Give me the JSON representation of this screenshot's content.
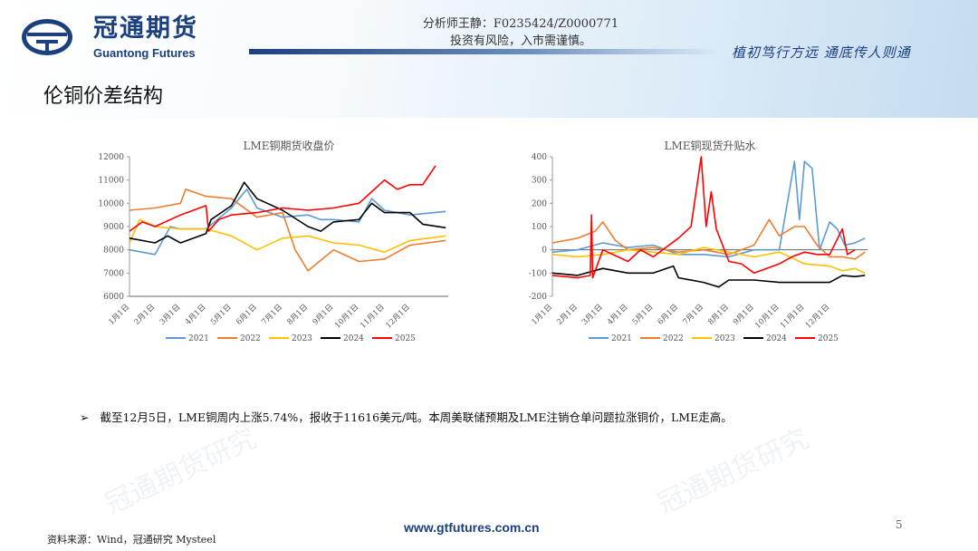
{
  "header": {
    "logo_cn": "冠通期货",
    "logo_en": "Guantong Futures",
    "analyst": "分析师王静：F0235424/Z0000771",
    "risk": "投资有风险，入市需谨慎。",
    "slogan": "植初笃行方远 通底传人则通"
  },
  "page_title": "伦铜价差结构",
  "bullet": "截至12月5日，LME铜周内上涨5.74%，报收于11616美元/吨。本周美联储预期及LME注销仓单问题拉涨铜价，LME走高。",
  "footer": {
    "source": "资料来源：Wind，冠通研究 Mysteel",
    "website": "www.gtfutures.com.cn",
    "page": "5"
  },
  "watermark": "冠通期货研究",
  "chart_data": [
    {
      "type": "line",
      "title": "LME铜期货收盘价",
      "ylim": [
        6000,
        12000
      ],
      "yticks": [
        6000,
        7000,
        8000,
        9000,
        10000,
        11000,
        12000
      ],
      "categories": [
        "1月1日",
        "2月1日",
        "3月1日",
        "4月1日",
        "5月1日",
        "6月1日",
        "7月1日",
        "8月1日",
        "9月1日",
        "10月1日",
        "11月1日",
        "12月1日"
      ],
      "series": [
        {
          "name": "2021",
          "color": "#5b9bd5",
          "x": [
            0,
            1,
            1.6,
            2,
            3,
            4,
            4.6,
            5,
            6,
            7,
            7.5,
            8,
            9,
            9.5,
            10,
            11,
            12.4
          ],
          "y": [
            8000,
            7800,
            9000,
            8900,
            8900,
            9800,
            10600,
            9800,
            9400,
            9500,
            9300,
            9300,
            9200,
            10200,
            9700,
            9500,
            9650
          ]
        },
        {
          "name": "2022",
          "color": "#ed7d31",
          "x": [
            0,
            1,
            2,
            2.2,
            3,
            4,
            5,
            6,
            6.5,
            7,
            8,
            9,
            10,
            11,
            12.4
          ],
          "y": [
            9700,
            9800,
            10000,
            10600,
            10300,
            10200,
            9400,
            9600,
            8000,
            7100,
            8000,
            7500,
            7600,
            8200,
            8400
          ]
        },
        {
          "name": "2023",
          "color": "#ffc000",
          "x": [
            0,
            0.4,
            1,
            2,
            3,
            4,
            5,
            6,
            7,
            8,
            9,
            10,
            11,
            12.4
          ],
          "y": [
            8300,
            9300,
            9000,
            8900,
            8900,
            8600,
            8000,
            8500,
            8600,
            8300,
            8200,
            7900,
            8400,
            8600
          ],
          "id": "2023"
        },
        {
          "name": "2024",
          "color": "#000000",
          "x": [
            0,
            1,
            1.5,
            2,
            3,
            3.2,
            4,
            4.5,
            5,
            6,
            7,
            7.5,
            8,
            9,
            9.5,
            10,
            11,
            11.5,
            12.4
          ],
          "y": [
            8500,
            8300,
            8600,
            8300,
            8700,
            9300,
            9900,
            10900,
            10200,
            9700,
            9000,
            8800,
            9200,
            9300,
            10000,
            9600,
            9600,
            9100,
            8950
          ]
        },
        {
          "name": "2025",
          "color": "#ff0000",
          "x": [
            0,
            0.5,
            1,
            2,
            3,
            3.1,
            3.5,
            4,
            5,
            6,
            7,
            8,
            9,
            9.5,
            10,
            10.5,
            11,
            11.5,
            12
          ],
          "y": [
            8800,
            9200,
            9000,
            9500,
            9900,
            8800,
            9300,
            9500,
            9600,
            9800,
            9700,
            9800,
            10000,
            10500,
            11000,
            10600,
            10800,
            10800,
            11616
          ]
        }
      ]
    },
    {
      "type": "line",
      "title": "LME铜现货升贴水",
      "ylim": [
        -200,
        400
      ],
      "yticks": [
        -200,
        -100,
        0,
        100,
        200,
        300,
        400
      ],
      "categories": [
        "1月1日",
        "2月1日",
        "3月1日",
        "4月1日",
        "5月1日",
        "6月1日",
        "7月1日",
        "8月1日",
        "9月1日",
        "10月1日",
        "11月1日",
        "12月1日"
      ],
      "series": [
        {
          "name": "2021",
          "color": "#5b9bd5",
          "x": [
            0,
            1,
            2,
            3,
            4,
            5,
            6,
            7,
            8,
            9,
            9.6,
            9.8,
            10,
            10.3,
            10.6,
            11,
            11.3,
            11.6,
            12,
            12.4
          ],
          "y": [
            -10,
            0,
            30,
            10,
            20,
            -20,
            -20,
            -30,
            0,
            0,
            380,
            130,
            380,
            350,
            0,
            120,
            90,
            20,
            30,
            50
          ]
        },
        {
          "name": "2022",
          "color": "#ed7d31",
          "x": [
            0,
            1,
            1.7,
            2,
            2.5,
            3,
            4,
            5,
            6,
            7,
            8,
            8.6,
            9,
            9.6,
            10,
            10.5,
            11,
            11.5,
            12,
            12.4
          ],
          "y": [
            30,
            50,
            80,
            120,
            40,
            0,
            10,
            -10,
            0,
            -20,
            20,
            130,
            60,
            100,
            100,
            20,
            -30,
            -30,
            -40,
            -10
          ]
        },
        {
          "name": "2023",
          "color": "#ffc000",
          "x": [
            0,
            1,
            2,
            3,
            4,
            5,
            6,
            7,
            8,
            9,
            10,
            11,
            11.5,
            12,
            12.4
          ],
          "y": [
            -20,
            -30,
            -20,
            0,
            -10,
            -20,
            10,
            -10,
            -30,
            -10,
            -60,
            -70,
            -90,
            -80,
            -100
          ]
        },
        {
          "name": "2024",
          "color": "#000000",
          "x": [
            0,
            1,
            2,
            3,
            4,
            4.8,
            5,
            6,
            6.6,
            7,
            8,
            9,
            10,
            11,
            11.5,
            12,
            12.4
          ],
          "y": [
            -100,
            -110,
            -80,
            -100,
            -100,
            -70,
            -120,
            -140,
            -160,
            -130,
            -130,
            -140,
            -140,
            -140,
            -110,
            -115,
            -110
          ]
        },
        {
          "name": "2025",
          "color": "#ff0000",
          "x": [
            0,
            1,
            1.5,
            1.55,
            1.6,
            2,
            3,
            3.5,
            4,
            5,
            5.5,
            5.9,
            6.1,
            6.3,
            6.5,
            7,
            7.5,
            8,
            8.5,
            9,
            9.5,
            10,
            10.5,
            11,
            11.5,
            11.7,
            12
          ],
          "y": [
            -110,
            -120,
            -110,
            150,
            -120,
            0,
            -50,
            0,
            -30,
            50,
            100,
            400,
            100,
            250,
            90,
            -50,
            -60,
            -100,
            -80,
            -60,
            -30,
            -10,
            -20,
            -20,
            90,
            -20,
            0
          ]
        }
      ]
    }
  ]
}
